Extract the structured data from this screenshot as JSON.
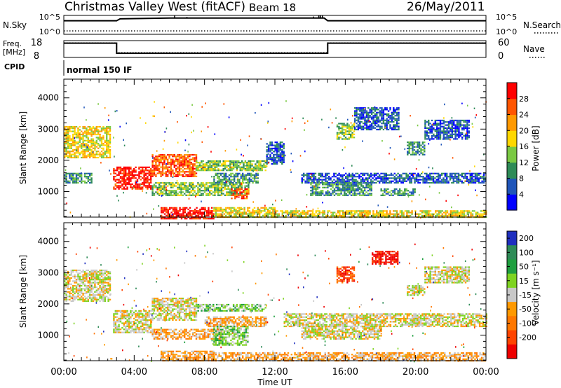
{
  "header": {
    "title": "Christmas Valley West (fitACF)",
    "beam": "Beam 18",
    "date": "26/May/2011"
  },
  "nsky_panel": {
    "left_label": "N.Sky",
    "right_label": "N.Search",
    "left_ticks": [
      "10^5",
      "10^0"
    ],
    "right_ticks": [
      "10^5",
      "10^0"
    ],
    "log_scale": true,
    "ylim_exponent": [
      0,
      5
    ]
  },
  "freq_panel": {
    "left_label_line1": "Freq.",
    "left_label_line2": "[MHz]",
    "right_label": "Nave",
    "left_ticks": [
      "18",
      "8"
    ],
    "right_ticks": [
      "60",
      "0"
    ],
    "ylim_left": [
      8,
      18
    ],
    "ylim_right": [
      0,
      60
    ]
  },
  "cpid": {
    "label": "CPID",
    "program_name": "normal 150 IF"
  },
  "chart_data": [
    {
      "type": "line",
      "panel": "noise",
      "series": [
        {
          "name": "N.Sky",
          "style": "solid",
          "y_exponent": [
            [
              0.0,
              3.6
            ],
            [
              3.0,
              3.6
            ],
            [
              3.2,
              4.1
            ],
            [
              6.0,
              4.3
            ],
            [
              9.0,
              4.3
            ],
            [
              12.0,
              4.3
            ],
            [
              14.8,
              4.3
            ],
            [
              15.0,
              3.6
            ],
            [
              24.0,
              3.6
            ]
          ]
        },
        {
          "name": "N.Search",
          "style": "dotted",
          "y_exponent": [
            [
              0.0,
              0.9
            ],
            [
              24.0,
              0.9
            ]
          ]
        }
      ]
    },
    {
      "type": "line",
      "panel": "frequency",
      "series": [
        {
          "name": "Freq.",
          "style": "solid",
          "y_mhz": [
            [
              0.0,
              16.5
            ],
            [
              3.0,
              16.5
            ],
            [
              3.0,
              10.5
            ],
            [
              15.0,
              10.5
            ],
            [
              15.0,
              16.5
            ],
            [
              24.0,
              16.5
            ]
          ]
        },
        {
          "name": "Nave",
          "style": "dotted",
          "y": [
            [
              0.0,
              52
            ],
            [
              3.0,
              52
            ],
            [
              3.0,
              17
            ],
            [
              15.0,
              17
            ],
            [
              15.0,
              52
            ],
            [
              24.0,
              52
            ]
          ]
        }
      ]
    },
    {
      "type": "heatmap",
      "panel": "power",
      "ylabel": "Slant Range [km]",
      "xlim_hours": [
        0,
        24
      ],
      "ylim_km": [
        180,
        4600
      ],
      "y_ticks": [
        "1000",
        "2000",
        "3000",
        "4000"
      ],
      "colorbar": {
        "label": "Power [dB]",
        "ticks": [
          "4",
          "8",
          "12",
          "16",
          "20",
          "24",
          "28"
        ],
        "colors": [
          "#0000ff",
          "#1f55b9",
          "#2e8b57",
          "#7ac943",
          "#ffd700",
          "#ff9900",
          "#ff5500",
          "#ff0000"
        ]
      },
      "patches": [
        {
          "t": [
            0.0,
            2.6
          ],
          "r": [
            2100,
            3100
          ],
          "c": 4
        },
        {
          "t": [
            0.0,
            1.6
          ],
          "r": [
            1300,
            1600
          ],
          "c": 2
        },
        {
          "t": [
            2.8,
            5.0
          ],
          "r": [
            1100,
            1800
          ],
          "c": 7
        },
        {
          "t": [
            5.0,
            7.5
          ],
          "r": [
            1500,
            2200
          ],
          "c": 6
        },
        {
          "t": [
            7.5,
            11.5
          ],
          "r": [
            1700,
            2000
          ],
          "c": 3
        },
        {
          "t": [
            5.0,
            10.5
          ],
          "r": [
            900,
            1300
          ],
          "c": 3
        },
        {
          "t": [
            8.5,
            11.0
          ],
          "r": [
            1300,
            1600
          ],
          "c": 2
        },
        {
          "t": [
            9.5,
            10.5
          ],
          "r": [
            800,
            1100
          ],
          "c": 6
        },
        {
          "t": [
            5.5,
            8.5
          ],
          "r": [
            150,
            500
          ],
          "c": 7
        },
        {
          "t": [
            8.5,
            12.0
          ],
          "r": [
            200,
            500
          ],
          "c": 4
        },
        {
          "t": [
            12.0,
            24.0
          ],
          "r": [
            200,
            400
          ],
          "c": 4
        },
        {
          "t": [
            13.5,
            24.0
          ],
          "r": [
            1300,
            1600
          ],
          "c": 1
        },
        {
          "t": [
            14.0,
            17.5
          ],
          "r": [
            900,
            1300
          ],
          "c": 2
        },
        {
          "t": [
            18.0,
            20.0
          ],
          "r": [
            900,
            1100
          ],
          "c": 2
        },
        {
          "t": [
            15.5,
            16.5
          ],
          "r": [
            2700,
            3200
          ],
          "c": 3
        },
        {
          "t": [
            16.5,
            19.0
          ],
          "r": [
            3000,
            3700
          ],
          "c": 1
        },
        {
          "t": [
            19.5,
            20.5
          ],
          "r": [
            2200,
            2600
          ],
          "c": 2
        },
        {
          "t": [
            20.5,
            23.0
          ],
          "r": [
            2700,
            3300
          ],
          "c": 1
        },
        {
          "t": [
            11.5,
            12.5
          ],
          "r": [
            1900,
            2600
          ],
          "c": 1
        }
      ]
    },
    {
      "type": "heatmap",
      "panel": "velocity",
      "ylabel": "Slant Range [km]",
      "xlabel": "Time UT",
      "xlim_hours": [
        0,
        24
      ],
      "ylim_km": [
        180,
        4600
      ],
      "x_ticks": [
        "00:00",
        "04:00",
        "08:00",
        "12:00",
        "16:00",
        "20:00",
        "00:00"
      ],
      "y_ticks": [
        "1000",
        "2000",
        "3000",
        "4000"
      ],
      "colorbar": {
        "label": "Velocity [m s⁻¹]",
        "ticks": [
          "200",
          "100",
          "50",
          "15",
          "-15",
          "-50",
          "-100",
          "-200"
        ],
        "colors": [
          "#1f2fbf",
          "#2e8b57",
          "#1f9f3f",
          "#7ed321",
          "#c8c8c8",
          "#ff9900",
          "#ff7700",
          "#ff4400",
          "#ee0000"
        ]
      },
      "patches": [
        {
          "t": [
            0.0,
            2.6
          ],
          "r": [
            2100,
            3100
          ],
          "c": 4
        },
        {
          "t": [
            2.8,
            5.0
          ],
          "r": [
            1100,
            1800
          ],
          "c": 4
        },
        {
          "t": [
            5.0,
            7.5
          ],
          "r": [
            1500,
            2200
          ],
          "c": 4
        },
        {
          "t": [
            5.0,
            9.0
          ],
          "r": [
            900,
            1200
          ],
          "c": 5
        },
        {
          "t": [
            7.5,
            11.5
          ],
          "r": [
            1800,
            2000
          ],
          "c": 3
        },
        {
          "t": [
            8.0,
            11.5
          ],
          "r": [
            1300,
            1600
          ],
          "c": 5
        },
        {
          "t": [
            8.5,
            10.5
          ],
          "r": [
            700,
            1300
          ],
          "c": 3
        },
        {
          "t": [
            5.5,
            8.5
          ],
          "r": [
            200,
            500
          ],
          "c": 5
        },
        {
          "t": [
            8.5,
            24.0
          ],
          "r": [
            200,
            450
          ],
          "c": 5
        },
        {
          "t": [
            12.5,
            24.0
          ],
          "r": [
            1300,
            1700
          ],
          "c": 4
        },
        {
          "t": [
            13.5,
            18.0
          ],
          "r": [
            900,
            1300
          ],
          "c": 4
        },
        {
          "t": [
            15.5,
            16.5
          ],
          "r": [
            2700,
            3200
          ],
          "c": 7
        },
        {
          "t": [
            17.5,
            19.0
          ],
          "r": [
            3300,
            3700
          ],
          "c": 8
        },
        {
          "t": [
            19.5,
            20.5
          ],
          "r": [
            2300,
            2600
          ],
          "c": 4
        },
        {
          "t": [
            20.5,
            23.0
          ],
          "r": [
            2700,
            3200
          ],
          "c": 4
        }
      ]
    }
  ]
}
